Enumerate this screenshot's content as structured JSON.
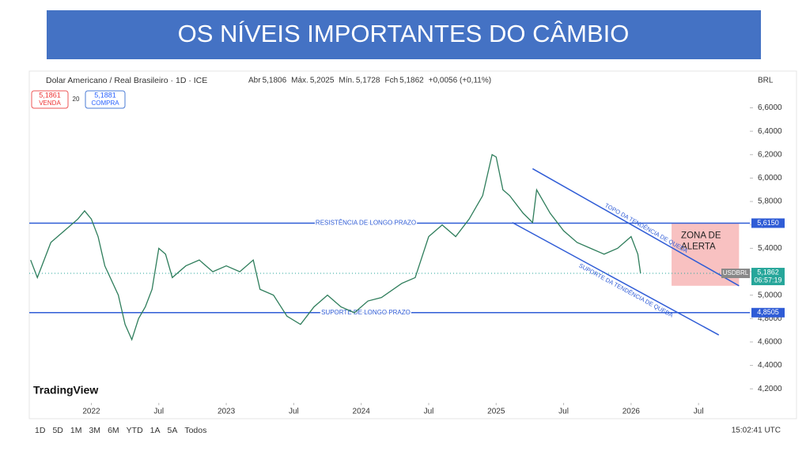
{
  "slide_title": "OS NÍVEIS IMPORTANTES DO CÂMBIO",
  "chart_data": {
    "type": "line",
    "title": "Dolar Americano / Real Brasileiro · 1D · ICE",
    "quote": [
      {
        "label": "Abr",
        "value": "5,1806"
      },
      {
        "label": "Máx.",
        "value": "5,2025"
      },
      {
        "label": "Mín.",
        "value": "5,1728"
      },
      {
        "label": "Fch",
        "value": "5,1862"
      }
    ],
    "change": "+0,0056 (+0,11%)",
    "sell": {
      "price": "5,1861",
      "label": "VENDA"
    },
    "spread": "20",
    "buy": {
      "price": "5,1881",
      "label": "COMPRA"
    },
    "currency": "BRL",
    "brand": "TradingView",
    "series": [
      {
        "name": "USDBRL",
        "color": "#2e7d5b",
        "x": [
          2021.55,
          2021.6,
          2021.7,
          2021.8,
          2021.9,
          2021.95,
          2022.0,
          2022.05,
          2022.1,
          2022.2,
          2022.25,
          2022.3,
          2022.35,
          2022.4,
          2022.45,
          2022.5,
          2022.55,
          2022.6,
          2022.7,
          2022.8,
          2022.9,
          2023.0,
          2023.1,
          2023.2,
          2023.25,
          2023.35,
          2023.45,
          2023.55,
          2023.65,
          2023.75,
          2023.85,
          2023.95,
          2024.05,
          2024.15,
          2024.3,
          2024.4,
          2024.5,
          2024.6,
          2024.7,
          2024.8,
          2024.9,
          2024.97,
          2025.0,
          2025.05,
          2025.1,
          2025.2,
          2025.27,
          2025.3,
          2025.4,
          2025.5,
          2025.6,
          2025.7,
          2025.8,
          2025.9,
          2026.0,
          2026.05,
          2026.07
        ],
        "values": [
          5.3,
          5.15,
          5.45,
          5.55,
          5.65,
          5.72,
          5.65,
          5.5,
          5.25,
          5.0,
          4.75,
          4.62,
          4.8,
          4.9,
          5.05,
          5.4,
          5.35,
          5.15,
          5.25,
          5.3,
          5.2,
          5.25,
          5.2,
          5.3,
          5.05,
          5.0,
          4.82,
          4.75,
          4.9,
          5.0,
          4.9,
          4.85,
          4.95,
          4.98,
          5.1,
          5.15,
          5.5,
          5.6,
          5.5,
          5.65,
          5.85,
          6.2,
          6.18,
          5.9,
          5.85,
          5.7,
          5.62,
          5.9,
          5.7,
          5.55,
          5.45,
          5.4,
          5.35,
          5.4,
          5.5,
          5.35,
          5.1862
        ]
      }
    ],
    "last": {
      "value": 5.1862,
      "label": "5,1862",
      "timer": "06:57:19"
    },
    "levels": [
      {
        "value": 5.615,
        "label": "5,6150",
        "name": "RESISTÊNCIA DE LONGO PRAZO"
      },
      {
        "value": 4.8505,
        "label": "4,8505",
        "name": "SUPORTE DE LONGO PRAZO"
      }
    ],
    "trendlines": [
      {
        "name": "TOPO DA TENDÊNCIA DE QUEDA",
        "x": [
          2025.27,
          2026.8
        ],
        "values": [
          6.08,
          5.08
        ]
      },
      {
        "name": "SUPORTE DA TENDÊNCIA DE QUEDA",
        "x": [
          2025.12,
          2026.65
        ],
        "values": [
          5.62,
          4.66
        ]
      }
    ],
    "zone": {
      "label": [
        "ZONA DE",
        "ALERTA"
      ],
      "x": [
        2026.3,
        2026.8
      ],
      "values": [
        5.615,
        5.08
      ]
    },
    "xlim": [
      2021.54,
      2026.88
    ],
    "ylim": [
      4.08,
      6.88
    ],
    "xticks": [
      {
        "value": 2022,
        "label": "2022"
      },
      {
        "value": 2022.5,
        "label": "Jul"
      },
      {
        "value": 2023,
        "label": "2023"
      },
      {
        "value": 2023.5,
        "label": "Jul"
      },
      {
        "value": 2024,
        "label": "2024"
      },
      {
        "value": 2024.5,
        "label": "Jul"
      },
      {
        "value": 2025,
        "label": "2025"
      },
      {
        "value": 2025.5,
        "label": "Jul"
      },
      {
        "value": 2026,
        "label": "2026"
      },
      {
        "value": 2026.5,
        "label": "Jul"
      }
    ],
    "yticks": [
      {
        "value": 4.2,
        "label": "4,2000"
      },
      {
        "value": 4.4,
        "label": "4,4000"
      },
      {
        "value": 4.6,
        "label": "4,6000"
      },
      {
        "value": 4.8,
        "label": "4,8000"
      },
      {
        "value": 5.0,
        "label": "5,0000"
      },
      {
        "value": 5.2,
        "label": "5,2000"
      },
      {
        "value": 5.4,
        "label": "5,4000"
      },
      {
        "value": 5.6,
        "label": "5,6000"
      },
      {
        "value": 5.8,
        "label": "5,8000"
      },
      {
        "value": 6.0,
        "label": "6,0000"
      },
      {
        "value": 6.2,
        "label": "6,2000"
      },
      {
        "value": 6.4,
        "label": "6,4000"
      },
      {
        "value": 6.6,
        "label": "6,6000"
      }
    ],
    "ranges": [
      "1D",
      "5D",
      "1M",
      "3M",
      "6M",
      "YTD",
      "1A",
      "5A",
      "Todos"
    ],
    "clock": "15:02:41 UTC"
  }
}
